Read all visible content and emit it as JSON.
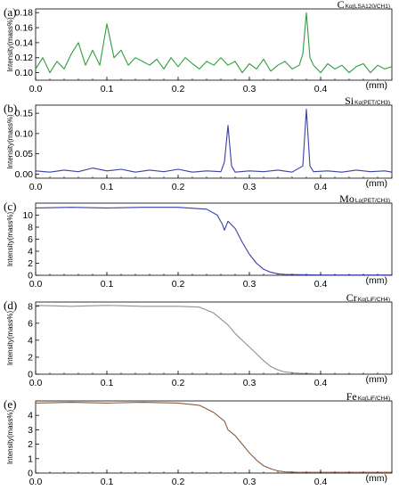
{
  "chart_data": [
    {
      "type": "line",
      "panel_label": "(a)",
      "element": "C",
      "element_sub": "Kα(LSA120/CH1)",
      "ylabel": "Intensity(mass%)",
      "xunit": "(mm)",
      "xlim": [
        0.0,
        0.5
      ],
      "ylim": [
        0.09,
        0.185
      ],
      "x_ticks": [
        "0.0",
        "0.1",
        "0.2",
        "0.3",
        "0.4"
      ],
      "y_ticks": [
        "0.10",
        "0.12",
        "0.14",
        "0.16",
        "0.18"
      ],
      "color": "#2e9e3a",
      "series": [
        {
          "x": [
            0.0,
            0.01,
            0.02,
            0.03,
            0.04,
            0.05,
            0.06,
            0.07,
            0.08,
            0.09,
            0.1,
            0.11,
            0.12,
            0.13,
            0.14,
            0.15,
            0.16,
            0.17,
            0.18,
            0.19,
            0.2,
            0.21,
            0.22,
            0.23,
            0.24,
            0.25,
            0.26,
            0.27,
            0.28,
            0.29,
            0.3,
            0.31,
            0.32,
            0.33,
            0.34,
            0.35,
            0.36,
            0.37,
            0.375,
            0.38,
            0.385,
            0.39,
            0.4,
            0.41,
            0.42,
            0.43,
            0.44,
            0.45,
            0.46,
            0.47,
            0.48,
            0.49,
            0.5
          ],
          "y": [
            0.105,
            0.12,
            0.1,
            0.115,
            0.105,
            0.125,
            0.14,
            0.11,
            0.13,
            0.11,
            0.165,
            0.12,
            0.13,
            0.11,
            0.12,
            0.115,
            0.11,
            0.118,
            0.105,
            0.12,
            0.108,
            0.12,
            0.112,
            0.105,
            0.115,
            0.11,
            0.12,
            0.11,
            0.115,
            0.1,
            0.112,
            0.105,
            0.118,
            0.102,
            0.11,
            0.115,
            0.105,
            0.11,
            0.125,
            0.18,
            0.12,
            0.11,
            0.1,
            0.112,
            0.105,
            0.11,
            0.1,
            0.108,
            0.112,
            0.1,
            0.11,
            0.105,
            0.108
          ]
        }
      ]
    },
    {
      "type": "line",
      "panel_label": "(b)",
      "element": "Si",
      "element_sub": "Kα(PET/CH3)",
      "ylabel": "Intensity(mass%)",
      "xunit": "(mm)",
      "xlim": [
        0.0,
        0.5
      ],
      "ylim": [
        -0.01,
        0.17
      ],
      "x_ticks": [
        "0.0",
        "0.1",
        "0.2",
        "0.3",
        "0.4"
      ],
      "y_ticks": [
        "0.00",
        "0.05",
        "0.10",
        "0.15"
      ],
      "color": "#3b3fa5",
      "series": [
        {
          "x": [
            0.0,
            0.02,
            0.04,
            0.06,
            0.08,
            0.1,
            0.12,
            0.14,
            0.16,
            0.18,
            0.2,
            0.22,
            0.24,
            0.26,
            0.265,
            0.27,
            0.275,
            0.28,
            0.3,
            0.32,
            0.34,
            0.36,
            0.375,
            0.38,
            0.385,
            0.39,
            0.41,
            0.43,
            0.45,
            0.47,
            0.49,
            0.5
          ],
          "y": [
            0.008,
            0.005,
            0.01,
            0.006,
            0.015,
            0.008,
            0.012,
            0.005,
            0.01,
            0.006,
            0.012,
            0.005,
            0.008,
            0.006,
            0.03,
            0.12,
            0.02,
            0.005,
            0.008,
            0.006,
            0.01,
            0.005,
            0.02,
            0.16,
            0.02,
            0.006,
            0.008,
            0.005,
            0.01,
            0.006,
            0.008,
            0.005
          ]
        }
      ]
    },
    {
      "type": "line",
      "panel_label": "(c)",
      "element": "Mo",
      "element_sub": "Lα(PET/CH3)",
      "ylabel": "Intensity(mass%)",
      "xunit": "(mm)",
      "xlim": [
        0.0,
        0.5
      ],
      "ylim": [
        0,
        12
      ],
      "x_ticks": [
        "0.0",
        "0.1",
        "0.2",
        "0.3",
        "0.4"
      ],
      "y_ticks": [
        "0",
        "2",
        "4",
        "6",
        "8",
        "10"
      ],
      "color": "#3b3fa5",
      "series": [
        {
          "x": [
            0.0,
            0.05,
            0.1,
            0.15,
            0.2,
            0.24,
            0.255,
            0.262,
            0.265,
            0.27,
            0.28,
            0.29,
            0.3,
            0.31,
            0.32,
            0.33,
            0.34,
            0.35,
            0.37,
            0.4,
            0.45,
            0.5
          ],
          "y": [
            11.2,
            11.3,
            11.2,
            11.3,
            11.3,
            11.0,
            10.0,
            8.5,
            7.5,
            9.0,
            7.8,
            5.5,
            3.5,
            2.0,
            1.0,
            0.5,
            0.25,
            0.15,
            0.1,
            0.05,
            0.05,
            0.05
          ]
        }
      ]
    },
    {
      "type": "line",
      "panel_label": "(d)",
      "element": "Cr",
      "element_sub": "Kα(LiF/CH4)",
      "ylabel": "Intensity(mass%)",
      "xunit": "(mm)",
      "xlim": [
        0.0,
        0.5
      ],
      "ylim": [
        0,
        8.5
      ],
      "x_ticks": [
        "0.0",
        "0.1",
        "0.2",
        "0.3",
        "0.4"
      ],
      "y_ticks": [
        "0",
        "2",
        "4",
        "6",
        "8"
      ],
      "color": "#909090",
      "series": [
        {
          "x": [
            0.0,
            0.05,
            0.1,
            0.15,
            0.2,
            0.23,
            0.25,
            0.27,
            0.28,
            0.29,
            0.3,
            0.31,
            0.32,
            0.33,
            0.34,
            0.35,
            0.37,
            0.4,
            0.45,
            0.5
          ],
          "y": [
            8.1,
            8.0,
            8.1,
            8.0,
            8.0,
            7.9,
            7.2,
            5.8,
            4.8,
            4.0,
            3.2,
            2.4,
            1.6,
            0.9,
            0.5,
            0.25,
            0.1,
            0.05,
            0.05,
            0.05
          ]
        }
      ]
    },
    {
      "type": "line",
      "panel_label": "(e)",
      "element": "Fe",
      "element_sub": "Kα(LiF/CH4)",
      "ylabel": "Intensity(mass%)",
      "xunit": "(mm)",
      "xlim": [
        0.0,
        0.5
      ],
      "ylim": [
        0,
        5
      ],
      "x_ticks": [
        "0.0",
        "0.1",
        "0.2",
        "0.3",
        "0.4"
      ],
      "y_ticks": [
        "0",
        "1",
        "2",
        "3",
        "4"
      ],
      "color": "#8b5a3c",
      "series": [
        {
          "x": [
            0.0,
            0.05,
            0.1,
            0.15,
            0.2,
            0.23,
            0.25,
            0.265,
            0.27,
            0.28,
            0.29,
            0.3,
            0.31,
            0.32,
            0.33,
            0.34,
            0.35,
            0.37,
            0.4,
            0.45,
            0.5
          ],
          "y": [
            4.85,
            4.9,
            4.85,
            4.9,
            4.85,
            4.7,
            4.2,
            3.6,
            3.0,
            2.6,
            2.0,
            1.4,
            0.9,
            0.5,
            0.3,
            0.15,
            0.08,
            0.05,
            0.05,
            0.05,
            0.05
          ]
        }
      ]
    }
  ]
}
